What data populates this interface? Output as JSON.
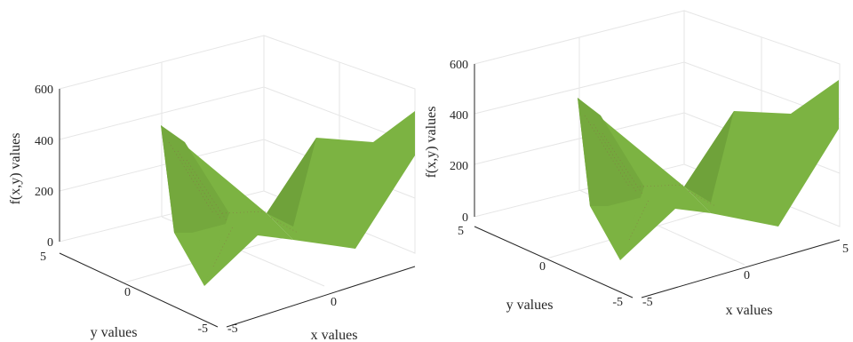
{
  "colors": {
    "axis": "#262626",
    "grid": "#e6e6e6",
    "surface": "#7cb342",
    "surface_dark": "#5d8f2e",
    "speckle": "#8d5a4a"
  },
  "chart_data": [
    {
      "type": "surface3d",
      "title": "",
      "xlabel": "x values",
      "ylabel": "y values",
      "zlabel": "f(x,y) values",
      "xlim": [
        -5,
        5
      ],
      "ylim": [
        -5,
        5
      ],
      "zlim": [
        0,
        600
      ],
      "x_ticks": [
        "-5",
        "0"
      ],
      "y_ticks": [
        "-5",
        "0",
        "5"
      ],
      "z_ticks": [
        "0",
        "200",
        "400",
        "600"
      ],
      "grid": true,
      "surface_x": [
        -5,
        0,
        5
      ],
      "surface_y": [
        -5,
        0,
        5
      ],
      "surface_z": [
        [
          300,
          80,
          500
        ],
        [
          200,
          5,
          300
        ],
        [
          500,
          80,
          300
        ]
      ]
    },
    {
      "type": "surface3d",
      "title": "",
      "xlabel": "x values",
      "ylabel": "y values",
      "zlabel": "f(x,y) values",
      "xlim": [
        -5,
        5
      ],
      "ylim": [
        -5,
        5
      ],
      "zlim": [
        0,
        600
      ],
      "x_ticks": [
        "-5",
        "0",
        "5"
      ],
      "y_ticks": [
        "-5",
        "0",
        "5"
      ],
      "z_ticks": [
        "0",
        "200",
        "400",
        "600"
      ],
      "grid": true,
      "surface_x": [
        -5,
        0,
        5
      ],
      "surface_y": [
        -5,
        0,
        5
      ],
      "surface_z": [
        [
          300,
          80,
          500
        ],
        [
          200,
          5,
          300
        ],
        [
          500,
          80,
          300
        ]
      ]
    }
  ]
}
